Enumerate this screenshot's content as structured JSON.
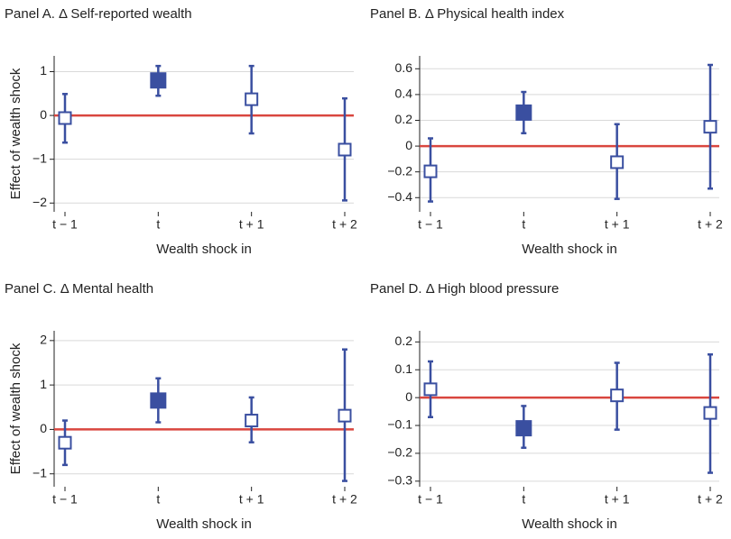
{
  "chart_data": [
    {
      "type": "errorbar",
      "title": "Panel A. Δ Self-reported wealth",
      "xlabel": "Wealth shock in",
      "ylabel": "Effect of wealth shock",
      "categories": [
        "t − 1",
        "t",
        "t + 1",
        "t + 2"
      ],
      "series": [
        {
          "color": "#3a4fa0",
          "values": [
            -0.06,
            0.8,
            0.37,
            -0.78
          ],
          "lower": [
            -0.62,
            0.45,
            -0.41,
            -1.94
          ],
          "upper": [
            0.49,
            1.13,
            1.13,
            0.39
          ],
          "filled": [
            false,
            true,
            false,
            false
          ]
        }
      ],
      "hline": 0,
      "hline_color": "#d9463f",
      "grid": true,
      "ylim": [
        -2.2,
        1.36
      ],
      "yticks": [
        {
          "value": -2,
          "label": "−2"
        },
        {
          "value": -1,
          "label": "−1"
        },
        0,
        1
      ]
    },
    {
      "type": "errorbar",
      "title": "Panel B. Δ Physical health index",
      "xlabel": "Wealth shock in",
      "categories": [
        "t − 1",
        "t",
        "t + 1",
        "t + 2"
      ],
      "series": [
        {
          "color": "#3a4fa0",
          "values": [
            -0.196,
            0.26,
            -0.125,
            0.15
          ],
          "lower": [
            -0.43,
            0.1,
            -0.41,
            -0.33
          ],
          "upper": [
            0.06,
            0.42,
            0.17,
            0.63
          ],
          "filled": [
            false,
            true,
            false,
            false
          ]
        }
      ],
      "hline": 0,
      "hline_color": "#d9463f",
      "grid": true,
      "ylim": [
        -0.51,
        0.7
      ],
      "yticks": [
        {
          "value": -0.4,
          "label": "−0.4"
        },
        {
          "value": -0.2,
          "label": "−0.2"
        },
        0,
        0.2,
        0.4,
        0.6
      ]
    },
    {
      "type": "errorbar",
      "title": "Panel C. Δ Mental health",
      "xlabel": "Wealth shock in",
      "ylabel": "Effect of wealth shock",
      "categories": [
        "t − 1",
        "t",
        "t + 1",
        "t + 2"
      ],
      "series": [
        {
          "color": "#3a4fa0",
          "values": [
            -0.3,
            0.65,
            0.2,
            0.31
          ],
          "lower": [
            -0.8,
            0.16,
            -0.29,
            -1.16
          ],
          "upper": [
            0.2,
            1.15,
            0.72,
            1.8
          ],
          "filled": [
            false,
            true,
            false,
            false
          ]
        }
      ],
      "hline": 0,
      "hline_color": "#d9463f",
      "grid": true,
      "ylim": [
        -1.29,
        2.22
      ],
      "yticks": [
        {
          "value": -1,
          "label": "−1"
        },
        0,
        1,
        2
      ]
    },
    {
      "type": "errorbar",
      "title": "Panel D. Δ High blood pressure",
      "xlabel": "Wealth shock in",
      "categories": [
        "t − 1",
        "t",
        "t + 1",
        "t + 2"
      ],
      "series": [
        {
          "color": "#3a4fa0",
          "values": [
            0.03,
            -0.11,
            0.008,
            -0.055
          ],
          "lower": [
            -0.07,
            -0.18,
            -0.115,
            -0.27
          ],
          "upper": [
            0.13,
            -0.03,
            0.125,
            0.155
          ],
          "filled": [
            false,
            true,
            false,
            false
          ]
        }
      ],
      "hline": 0,
      "hline_color": "#d9463f",
      "grid": true,
      "ylim": [
        -0.32,
        0.24
      ],
      "yticks": [
        {
          "value": -0.3,
          "label": "−0.3"
        },
        {
          "value": -0.2,
          "label": "−0.2"
        },
        {
          "value": -0.1,
          "label": "−0.1"
        },
        0,
        0.1,
        0.2
      ]
    }
  ]
}
